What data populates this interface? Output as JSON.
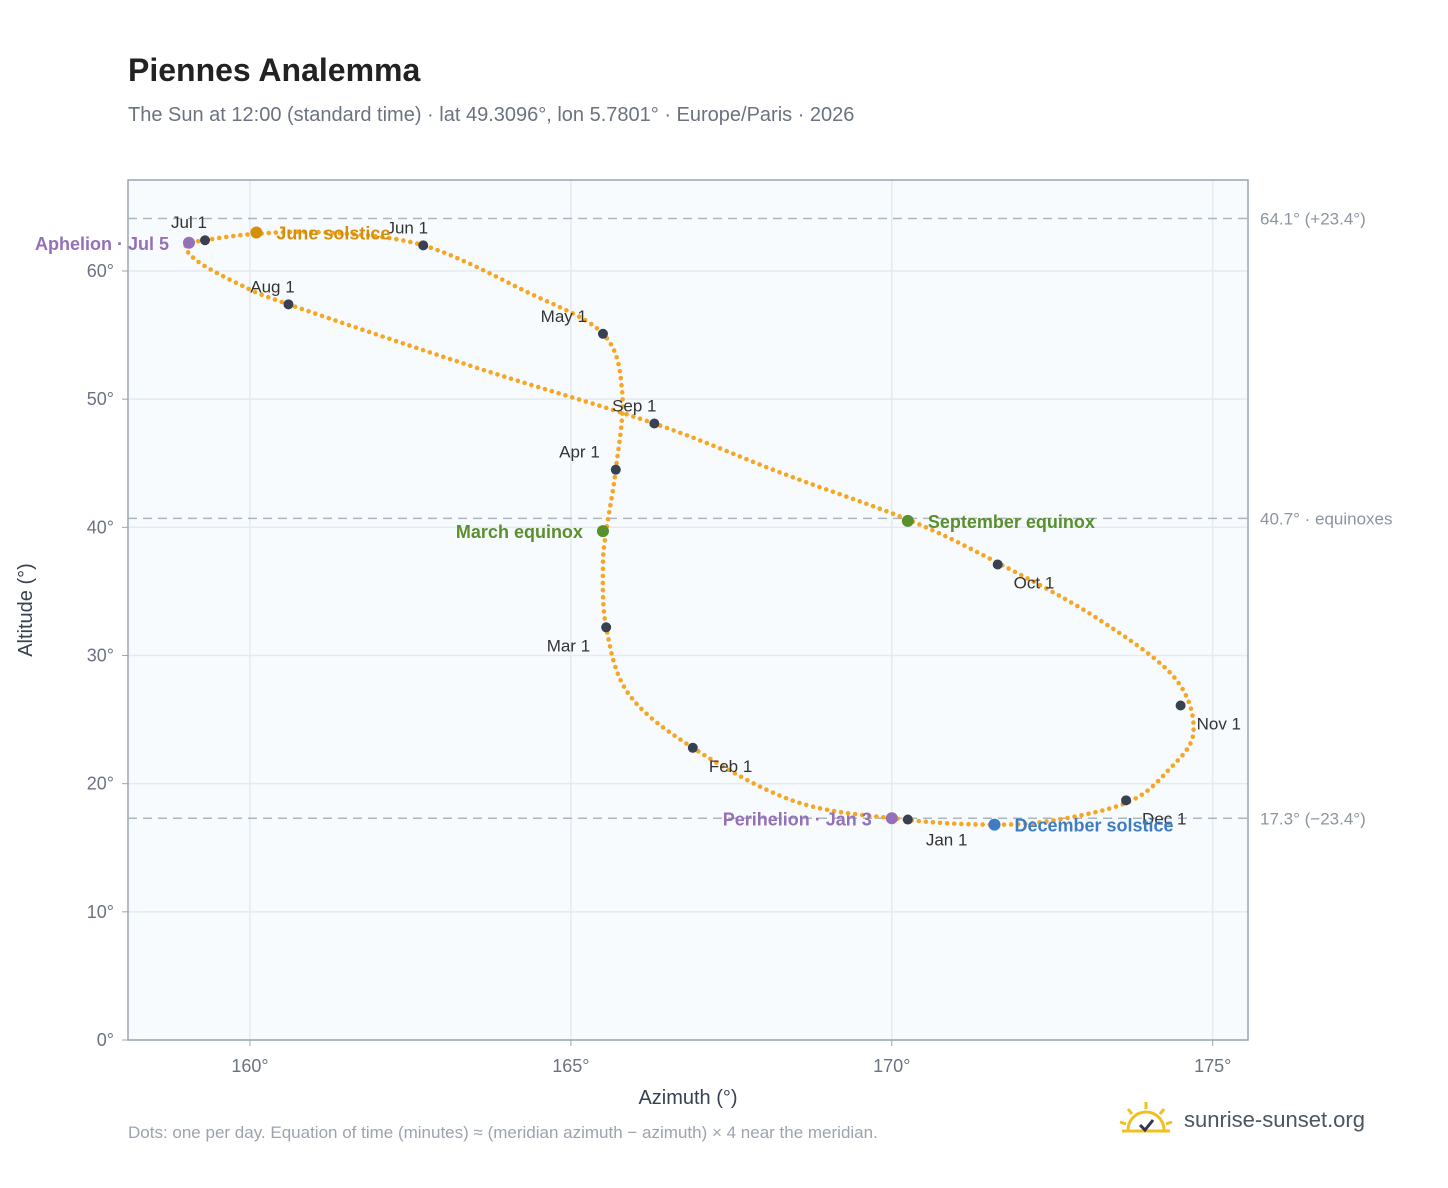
{
  "title": "Piennes Analemma",
  "subtitle": "The Sun at 12:00 (standard time) · lat 49.3096°, lon 5.7801° · Europe/Paris · 2026",
  "footnote": "Dots: one per day. Equation of time (minutes) ≈ (meridian azimuth − azimuth) × 4 near the meridian.",
  "brand": {
    "text": "sunrise-sunset.org",
    "icon": "sun-logo-icon"
  },
  "colors": {
    "curve": "#f5a623",
    "month_dot": "#374151",
    "solstice_june": "#d4900a",
    "equinox": "#5a8f2e",
    "solstice_december": "#3f7cc4",
    "apsis": "#9370b8",
    "plot_bg": "#f8fbfd",
    "grid": "#e3eaf0",
    "ref_line": "#aab7c2"
  },
  "chart_data": {
    "type": "scatter",
    "title": "Piennes Analemma",
    "xlabel": "Azimuth (°)",
    "ylabel": "Altitude (°)",
    "xlim": [
      158.1,
      175.55
    ],
    "ylim": [
      0,
      67.1
    ],
    "xticks": [
      160,
      165,
      170,
      175
    ],
    "yticks": [
      0,
      10,
      20,
      30,
      40,
      50,
      60
    ],
    "tick_suffix": "°",
    "grid": true,
    "anchors": [
      {
        "x": 170.2,
        "y": 17.2
      },
      {
        "x": 168.5,
        "y": 18.6
      },
      {
        "x": 166.9,
        "y": 22.8
      },
      {
        "x": 165.9,
        "y": 27.0
      },
      {
        "x": 165.55,
        "y": 32.2
      },
      {
        "x": 165.5,
        "y": 37.0
      },
      {
        "x": 165.55,
        "y": 39.7
      },
      {
        "x": 165.7,
        "y": 44.5
      },
      {
        "x": 165.8,
        "y": 50.5
      },
      {
        "x": 165.5,
        "y": 55.1
      },
      {
        "x": 164.3,
        "y": 58.4
      },
      {
        "x": 162.7,
        "y": 62.0
      },
      {
        "x": 161.2,
        "y": 63.0
      },
      {
        "x": 160.1,
        "y": 62.9
      },
      {
        "x": 159.3,
        "y": 62.4
      },
      {
        "x": 159.0,
        "y": 62.0
      },
      {
        "x": 159.2,
        "y": 60.7
      },
      {
        "x": 159.9,
        "y": 58.8
      },
      {
        "x": 160.6,
        "y": 57.4
      },
      {
        "x": 163.5,
        "y": 52.5
      },
      {
        "x": 166.3,
        "y": 48.1
      },
      {
        "x": 168.3,
        "y": 44.2
      },
      {
        "x": 170.3,
        "y": 40.5
      },
      {
        "x": 171.7,
        "y": 37.1
      },
      {
        "x": 173.2,
        "y": 32.9
      },
      {
        "x": 174.4,
        "y": 28.3
      },
      {
        "x": 174.7,
        "y": 24.0
      },
      {
        "x": 174.3,
        "y": 21.0
      },
      {
        "x": 173.7,
        "y": 18.6
      },
      {
        "x": 172.6,
        "y": 17.2
      },
      {
        "x": 171.6,
        "y": 16.8
      },
      {
        "x": 170.2,
        "y": 17.2
      }
    ],
    "reference_lines": [
      {
        "y": 64.1,
        "label": "64.1° (+23.4°)"
      },
      {
        "y": 40.7,
        "label": "40.7° · equinoxes"
      },
      {
        "y": 17.3,
        "label": "17.3° (−23.4°)"
      }
    ],
    "month_markers": [
      {
        "label": "Jan 1",
        "x": 170.25,
        "y": 17.2
      },
      {
        "label": "Feb 1",
        "x": 166.9,
        "y": 22.8
      },
      {
        "label": "Mar 1",
        "x": 165.55,
        "y": 32.2
      },
      {
        "label": "Apr 1",
        "x": 165.7,
        "y": 44.5
      },
      {
        "label": "May 1",
        "x": 165.5,
        "y": 55.1
      },
      {
        "label": "Jun 1",
        "x": 162.7,
        "y": 62.0
      },
      {
        "label": "Jul 1",
        "x": 159.3,
        "y": 62.4
      },
      {
        "label": "Aug 1",
        "x": 160.6,
        "y": 57.4
      },
      {
        "label": "Sep 1",
        "x": 166.3,
        "y": 48.1
      },
      {
        "label": "Oct 1",
        "x": 171.65,
        "y": 37.1
      },
      {
        "label": "Nov 1",
        "x": 174.5,
        "y": 26.1
      },
      {
        "label": "Dec 1",
        "x": 173.65,
        "y": 18.7
      }
    ],
    "events": [
      {
        "label": "June solstice",
        "x": 160.1,
        "y": 63.0,
        "color": "#d4900a",
        "side": "right"
      },
      {
        "label": "March equinox",
        "x": 165.5,
        "y": 39.7,
        "color": "#5a8f2e",
        "side": "left"
      },
      {
        "label": "September equinox",
        "x": 170.25,
        "y": 40.5,
        "color": "#5a8f2e",
        "side": "right"
      },
      {
        "label": "December solstice",
        "x": 171.6,
        "y": 16.8,
        "color": "#3f7cc4",
        "side": "right"
      },
      {
        "label": "Aphelion · Jul 5",
        "x": 159.05,
        "y": 62.2,
        "color": "#9370b8",
        "side": "left"
      },
      {
        "label": "Perihelion · Jan 3",
        "x": 170.0,
        "y": 17.3,
        "color": "#9370b8",
        "side": "left"
      }
    ]
  }
}
